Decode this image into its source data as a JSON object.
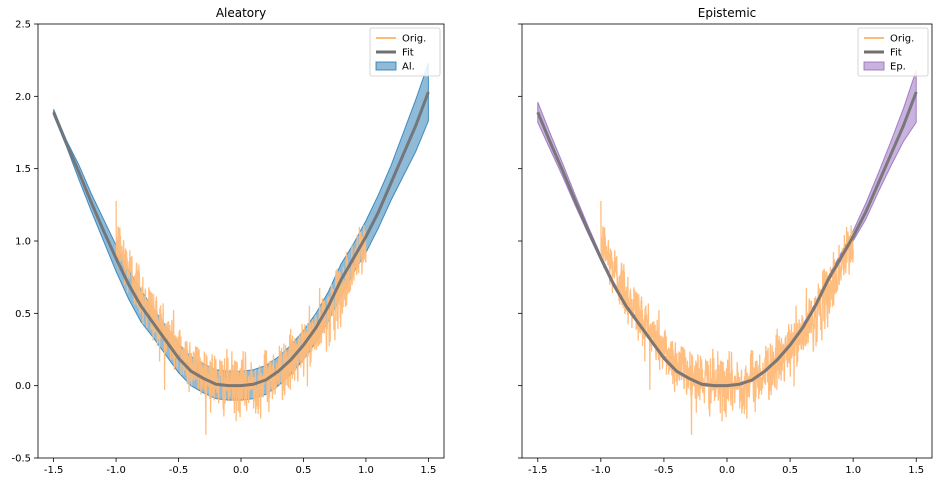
{
  "chart_data": [
    {
      "type": "line",
      "title": "Aleatory",
      "xlabel": "",
      "ylabel": "",
      "xlim": [
        -1.625,
        1.625
      ],
      "ylim": [
        -0.5,
        2.5
      ],
      "xticks": [
        "-1.5",
        "-1.0",
        "-0.5",
        "0.0",
        "0.5",
        "1.0",
        "1.5"
      ],
      "yticks": [
        "-0.5",
        "0.0",
        "0.5",
        "1.0",
        "1.5",
        "2.0",
        "2.5"
      ],
      "show_yticklabels": true,
      "grid": false,
      "legend_position": "top-right",
      "legend": [
        "Orig.",
        "Fit",
        "Al."
      ],
      "orig": {
        "name": "Orig.",
        "color": "#ffbb78",
        "x_range": [
          -1.0,
          1.0
        ],
        "curve": "y = x^2",
        "noise_std": 0.1,
        "samples": 1000
      },
      "fit": {
        "name": "Fit",
        "color": "#707070",
        "x": [
          -1.5,
          -1.4,
          -1.3,
          -1.2,
          -1.1,
          -1.0,
          -0.9,
          -0.8,
          -0.7,
          -0.6,
          -0.5,
          -0.4,
          -0.3,
          -0.2,
          -0.1,
          0.0,
          0.1,
          0.2,
          0.3,
          0.4,
          0.5,
          0.6,
          0.7,
          0.8,
          0.9,
          1.0,
          1.1,
          1.2,
          1.3,
          1.4,
          1.5
        ],
        "y": [
          1.89,
          1.68,
          1.48,
          1.27,
          1.07,
          0.88,
          0.7,
          0.55,
          0.43,
          0.31,
          0.19,
          0.1,
          0.05,
          0.01,
          0.0,
          0.0,
          0.01,
          0.04,
          0.1,
          0.18,
          0.28,
          0.4,
          0.55,
          0.73,
          0.88,
          1.03,
          1.2,
          1.4,
          1.6,
          1.8,
          2.03
        ]
      },
      "band": {
        "name": "Al.",
        "color": "#1f77b4",
        "lower": [
          1.87,
          1.66,
          1.43,
          1.21,
          1.0,
          0.79,
          0.6,
          0.44,
          0.33,
          0.21,
          0.09,
          0.0,
          -0.05,
          -0.09,
          -0.1,
          -0.1,
          -0.09,
          -0.06,
          0.0,
          0.08,
          0.18,
          0.3,
          0.45,
          0.62,
          0.78,
          0.92,
          1.09,
          1.28,
          1.45,
          1.62,
          1.83
        ],
        "upper": [
          1.91,
          1.7,
          1.53,
          1.33,
          1.15,
          0.97,
          0.8,
          0.66,
          0.53,
          0.41,
          0.29,
          0.2,
          0.15,
          0.11,
          0.1,
          0.1,
          0.11,
          0.14,
          0.2,
          0.28,
          0.38,
          0.5,
          0.65,
          0.84,
          0.98,
          1.14,
          1.32,
          1.52,
          1.75,
          1.98,
          2.23
        ]
      }
    },
    {
      "type": "line",
      "title": "Epistemic",
      "xlabel": "",
      "ylabel": "",
      "xlim": [
        -1.625,
        1.625
      ],
      "ylim": [
        -0.5,
        2.5
      ],
      "xticks": [
        "-1.5",
        "-1.0",
        "-0.5",
        "0.0",
        "0.5",
        "1.0",
        "1.5"
      ],
      "yticks": [
        "-0.5",
        "0.0",
        "0.5",
        "1.0",
        "1.5",
        "2.0",
        "2.5"
      ],
      "show_yticklabels": false,
      "grid": false,
      "legend_position": "top-right",
      "legend": [
        "Orig.",
        "Fit",
        "Ep."
      ],
      "orig": {
        "name": "Orig.",
        "color": "#ffbb78",
        "x_range": [
          -1.0,
          1.0
        ],
        "curve": "y = x^2",
        "noise_std": 0.1,
        "samples": 1000
      },
      "fit": {
        "name": "Fit",
        "color": "#707070",
        "x": [
          -1.5,
          -1.4,
          -1.3,
          -1.2,
          -1.1,
          -1.0,
          -0.9,
          -0.8,
          -0.7,
          -0.6,
          -0.5,
          -0.4,
          -0.3,
          -0.2,
          -0.1,
          0.0,
          0.1,
          0.2,
          0.3,
          0.4,
          0.5,
          0.6,
          0.7,
          0.8,
          0.9,
          1.0,
          1.1,
          1.2,
          1.3,
          1.4,
          1.5
        ],
        "y": [
          1.89,
          1.68,
          1.48,
          1.27,
          1.07,
          0.88,
          0.7,
          0.55,
          0.43,
          0.31,
          0.19,
          0.1,
          0.05,
          0.01,
          0.0,
          0.0,
          0.01,
          0.04,
          0.1,
          0.18,
          0.28,
          0.4,
          0.55,
          0.73,
          0.88,
          1.03,
          1.2,
          1.4,
          1.6,
          1.8,
          2.03
        ]
      },
      "band": {
        "name": "Ep.",
        "color": "#9467bd",
        "lower": [
          1.82,
          1.63,
          1.44,
          1.24,
          1.05,
          0.87,
          0.69,
          0.54,
          0.42,
          0.3,
          0.18,
          0.09,
          0.04,
          0.0,
          -0.01,
          -0.01,
          0.0,
          0.03,
          0.09,
          0.17,
          0.27,
          0.39,
          0.54,
          0.71,
          0.86,
          1.0,
          1.15,
          1.34,
          1.52,
          1.69,
          1.82
        ],
        "upper": [
          1.96,
          1.74,
          1.53,
          1.31,
          1.1,
          0.9,
          0.72,
          0.57,
          0.45,
          0.32,
          0.21,
          0.11,
          0.06,
          0.02,
          0.01,
          0.01,
          0.02,
          0.05,
          0.11,
          0.2,
          0.3,
          0.42,
          0.57,
          0.75,
          0.91,
          1.07,
          1.26,
          1.47,
          1.69,
          1.92,
          2.18
        ]
      }
    }
  ]
}
